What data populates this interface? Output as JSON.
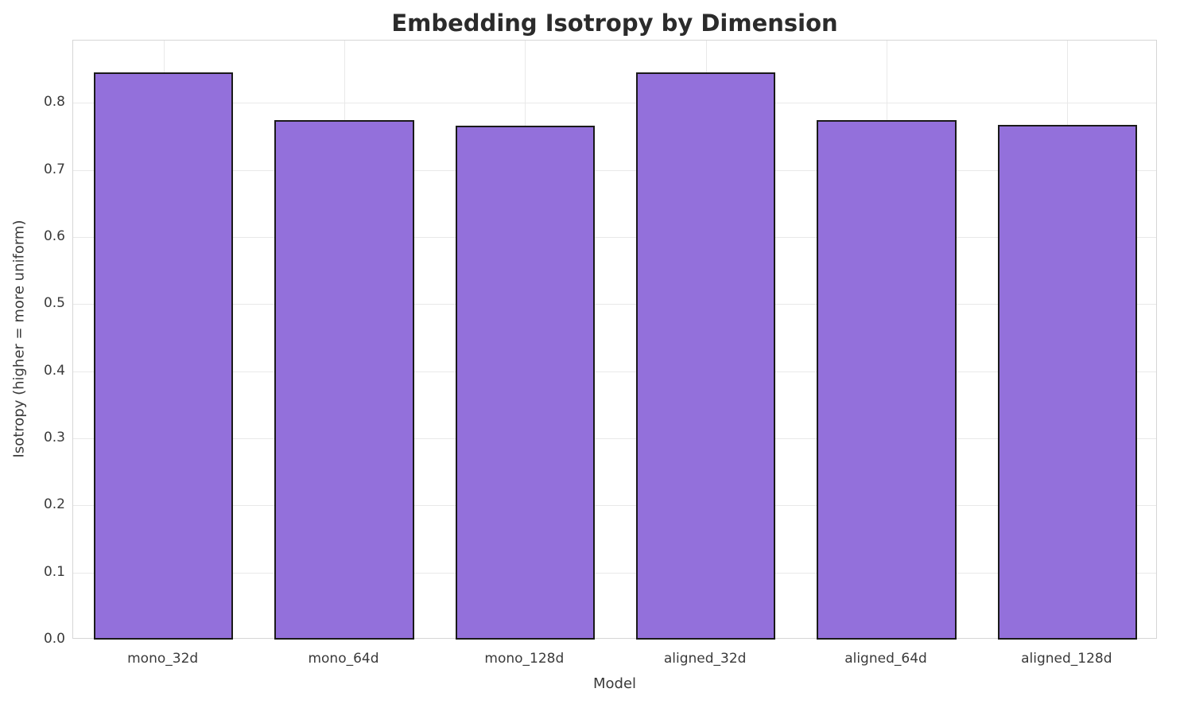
{
  "chart_data": {
    "type": "bar",
    "title": "Embedding Isotropy by Dimension",
    "xlabel": "Model",
    "ylabel": "Isotropy (higher = more uniform)",
    "categories": [
      "mono_32d",
      "mono_64d",
      "mono_128d",
      "aligned_32d",
      "aligned_64d",
      "aligned_128d"
    ],
    "values": [
      0.845,
      0.775,
      0.766,
      0.845,
      0.775,
      0.767
    ],
    "ylim": [
      0,
      0.893
    ],
    "yticks": [
      0.0,
      0.1,
      0.2,
      0.3,
      0.4,
      0.5,
      0.6,
      0.7,
      0.8
    ],
    "ytick_labels": [
      "0.0",
      "0.1",
      "0.2",
      "0.3",
      "0.4",
      "0.5",
      "0.6",
      "0.7",
      "0.8"
    ],
    "grid": true,
    "legend": "none",
    "bar_color": "#9370db",
    "bar_edge_color": "#1a1a1a",
    "background_color": "#ffffff",
    "gridline_color": "#e9e9e9"
  }
}
